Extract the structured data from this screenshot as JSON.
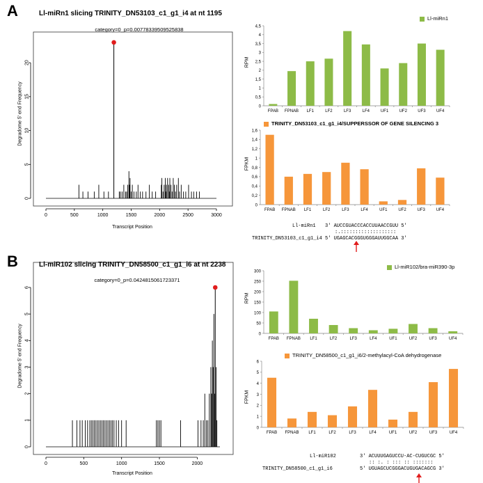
{
  "colors": {
    "green": "#8dbb47",
    "orange": "#f6963a",
    "peak": "#e11d1d",
    "arrow": "#e11d1d"
  },
  "panelA": {
    "letter": "A",
    "tplot": {
      "title": "Ll-miRn1 slicing TRINITY_DN53103_c1_g1_i4 at nt 1195",
      "subtitle": "category=0_p=0.00778339509525838",
      "ylabel": "Degradome 5' end Frequency",
      "xlabel": "Transcript Position",
      "xticks": [
        "0",
        "500",
        "1000",
        "1500",
        "2000",
        "2500",
        "3000"
      ],
      "yticks": [
        "0",
        "5",
        "10",
        "15",
        "20"
      ]
    },
    "bar1": {
      "legend": "Ll-miRn1",
      "ylabel": "RPM",
      "yticks": [
        "0",
        "0,5",
        "1",
        "1,5",
        "2",
        "2,5",
        "3",
        "3,5",
        "4",
        "4,5"
      ],
      "categories": [
        "FPAB",
        "FPNAB",
        "LF1",
        "LF2",
        "LF3",
        "LF4",
        "UF1",
        "UF2",
        "UF3",
        "UF4"
      ]
    },
    "bar2": {
      "legend": "TRINITY_DN53103_c1_g1_i4/SUPPERSSOR OF GENE SILENCING 3",
      "ylabel": "FPKM",
      "yticks": [
        "0",
        "0,2",
        "0,4",
        "0,6",
        "0,8",
        "1",
        "1,2",
        "1,4",
        "1,6"
      ],
      "categories": [
        "FPAB",
        "FPNAB",
        "LF1",
        "LF2",
        "LF3",
        "LF4",
        "UF1",
        "UF2",
        "UF3",
        "UF4"
      ]
    },
    "alignment": {
      "mirna_name": "Ll-miRn1",
      "mirna_seq": "3' AUCCGUACCCACCUUAACCGUU 5'",
      "match": ":.:::::::::::::::::::",
      "target_name": "TRINITY_DN53103_c1_g1_i4",
      "target_seq": "5' UGAGCACGGGUGGGAUUGGCAA 3'"
    }
  },
  "panelB": {
    "letter": "B",
    "tplot": {
      "title": "Ll-miR102 slicing TRINITY_DN58500_c1_g1_i6 at nt 2238",
      "subtitle": "category=0_p=0.0424815061723371",
      "ylabel": "Degradome 5' end Frequency",
      "xlabel": "Transcript Position",
      "xticks": [
        "0",
        "500",
        "1000",
        "1500",
        "2000"
      ],
      "yticks": [
        "0",
        "1",
        "2",
        "3",
        "4",
        "5",
        "6"
      ]
    },
    "bar1": {
      "legend": "Ll-miR102/bra-miR390-3p",
      "ylabel": "RPM",
      "yticks": [
        "0",
        "50",
        "100",
        "150",
        "200",
        "250",
        "300"
      ],
      "categories": [
        "FPAB",
        "FPNAB",
        "LF1",
        "LF2",
        "LF3",
        "LF4",
        "UF1",
        "UF2",
        "UF3",
        "UF4"
      ]
    },
    "bar2": {
      "legend": "TRINITY_DN58500_c1_g1_i6/2-methylacyl-CoA dehydrogenase",
      "ylabel": "FPKM",
      "yticks": [
        "0",
        "1",
        "2",
        "3",
        "4",
        "5",
        "6"
      ],
      "categories": [
        "FPAB",
        "FPNAB",
        "LF1",
        "LF2",
        "LF3",
        "LF4",
        "UF1",
        "UF2",
        "UF3",
        "UF4"
      ]
    },
    "alignment": {
      "mirna_name": "Ll-miR102",
      "mirna_seq": "3' ACUUUGAGUCCU-AC-CUGUCGC 5'",
      "match": ":: :. : ::: :: :::::::",
      "target_name": "TRINITY_DN58500_c1_g1_i6",
      "target_seq": "5' UGUAGCUCGGGACUGUGACAGCG 3'"
    }
  },
  "chart_data": [
    {
      "type": "bar",
      "title": "Ll-miRn1 slicing TRINITY_DN53103_c1_g1_i4 at nt 1195 (T-plot)",
      "xlabel": "Transcript Position",
      "ylabel": "Degradome 5' end Frequency",
      "xlim": [
        0,
        3000
      ],
      "ylim": [
        0,
        23
      ],
      "peak": {
        "x": 1195,
        "y": 23
      },
      "x": [
        580,
        650,
        740,
        850,
        930,
        1020,
        1100,
        1290,
        1310,
        1340,
        1370,
        1400,
        1420,
        1440,
        1460,
        1470,
        1480,
        1500,
        1520,
        1550,
        1590,
        1620,
        1660,
        1700,
        1760,
        1820,
        1870,
        1930,
        2030,
        2040,
        2060,
        2080,
        2100,
        2110,
        2120,
        2140,
        2160,
        2170,
        2180,
        2200,
        2220,
        2240,
        2260,
        2280,
        2300,
        2330,
        2350,
        2380,
        2420,
        2460,
        2510,
        2560,
        2600,
        2650,
        2700
      ],
      "y": [
        2,
        1,
        1,
        1,
        2,
        1,
        1,
        1,
        1,
        1,
        2,
        1,
        1,
        2,
        4,
        2,
        3,
        1,
        2,
        1,
        1,
        2,
        1,
        1,
        1,
        2,
        1,
        1,
        2,
        3,
        1,
        2,
        3,
        1,
        2,
        3,
        2,
        1,
        3,
        2,
        1,
        3,
        2,
        1,
        2,
        3,
        1,
        2,
        1,
        1,
        2,
        1,
        1,
        1,
        1
      ]
    },
    {
      "type": "bar",
      "title": "Ll-miRn1",
      "xlabel": "",
      "ylabel": "RPM",
      "ylim": [
        0,
        4.5
      ],
      "categories": [
        "FPAB",
        "FPNAB",
        "LF1",
        "LF2",
        "LF3",
        "LF4",
        "UF1",
        "UF2",
        "UF3",
        "UF4"
      ],
      "values": [
        0.1,
        1.95,
        2.5,
        2.65,
        4.2,
        3.45,
        2.1,
        2.4,
        3.5,
        3.15
      ]
    },
    {
      "type": "bar",
      "title": "TRINITY_DN53103_c1_g1_i4/SUPPERSSOR OF GENE SILENCING 3",
      "xlabel": "",
      "ylabel": "FPKM",
      "ylim": [
        0,
        1.6
      ],
      "categories": [
        "FPAB",
        "FPNAB",
        "LF1",
        "LF2",
        "LF3",
        "LF4",
        "UF1",
        "UF2",
        "UF3",
        "UF4"
      ],
      "values": [
        1.5,
        0.6,
        0.66,
        0.7,
        0.9,
        0.76,
        0.07,
        0.1,
        0.78,
        0.58
      ]
    },
    {
      "type": "bar",
      "title": "Ll-miR102 slicing TRINITY_DN58500_c1_g1_i6 at nt 2238 (T-plot)",
      "xlabel": "Transcript Position",
      "ylabel": "Degradome 5' end Frequency",
      "xlim": [
        0,
        2300
      ],
      "ylim": [
        0,
        6
      ],
      "peak": {
        "x": 2238,
        "y": 6
      },
      "x": [
        350,
        410,
        450,
        480,
        520,
        550,
        580,
        600,
        620,
        640,
        660,
        680,
        700,
        720,
        740,
        760,
        780,
        800,
        820,
        840,
        860,
        880,
        900,
        930,
        960,
        1000,
        1060,
        1460,
        1480,
        1500,
        1520,
        1780,
        2010,
        2050,
        2080,
        2100,
        2120,
        2140,
        2160,
        2180,
        2190,
        2200,
        2210,
        2220,
        2230,
        2250,
        2260
      ],
      "y": [
        1,
        1,
        1,
        1,
        1,
        1,
        1,
        1,
        1,
        1,
        1,
        1,
        1,
        1,
        1,
        1,
        1,
        1,
        1,
        1,
        1,
        1,
        1,
        1,
        1,
        1,
        1,
        1,
        1,
        1,
        1,
        1,
        1,
        1,
        1,
        2,
        1,
        1,
        2,
        3,
        2,
        4,
        3,
        5,
        2,
        3,
        1
      ]
    },
    {
      "type": "bar",
      "title": "Ll-miR102/bra-miR390-3p",
      "xlabel": "",
      "ylabel": "RPM",
      "ylim": [
        0,
        300
      ],
      "categories": [
        "FPAB",
        "FPNAB",
        "LF1",
        "LF2",
        "LF3",
        "LF4",
        "UF1",
        "UF2",
        "UF3",
        "UF4"
      ],
      "values": [
        105,
        252,
        70,
        40,
        25,
        15,
        22,
        45,
        25,
        10
      ]
    },
    {
      "type": "bar",
      "title": "TRINITY_DN58500_c1_g1_i6/2-methylacyl-CoA dehydrogenase",
      "xlabel": "",
      "ylabel": "FPKM",
      "ylim": [
        0,
        6
      ],
      "categories": [
        "FPAB",
        "FPNAB",
        "LF1",
        "LF2",
        "LF3",
        "LF4",
        "UF1",
        "UF2",
        "UF3",
        "UF4"
      ],
      "values": [
        4.5,
        0.8,
        1.4,
        1.1,
        1.9,
        3.4,
        0.7,
        1.4,
        4.1,
        5.3
      ]
    }
  ]
}
